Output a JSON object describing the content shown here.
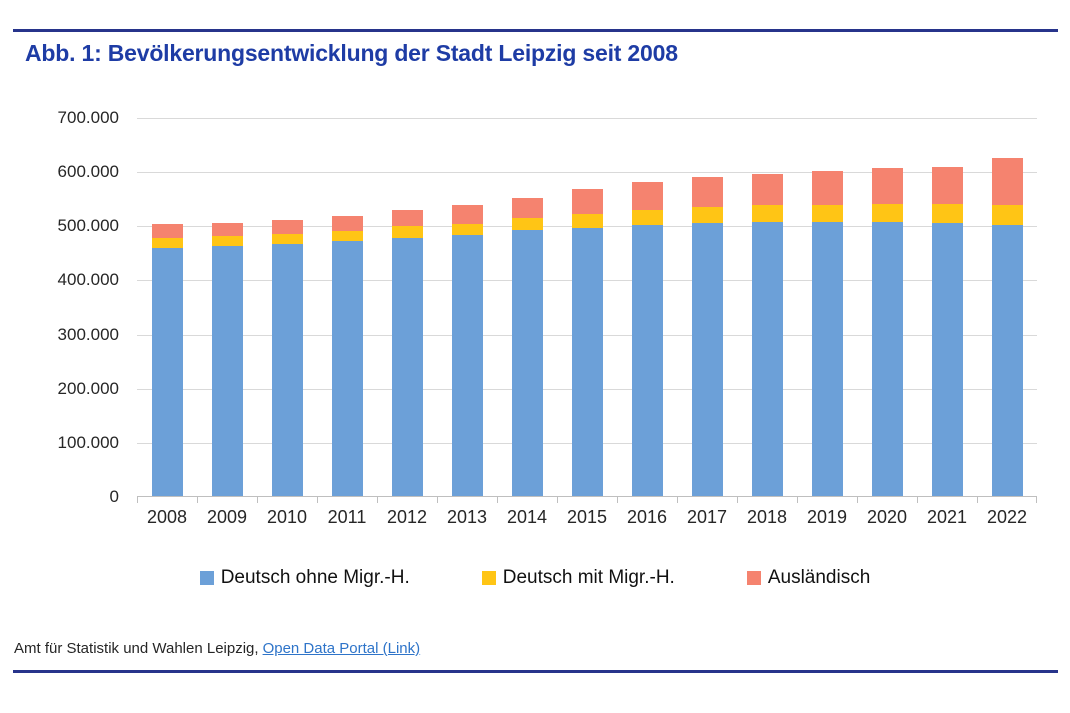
{
  "header": {
    "title": "Abb. 1: Bevölkerungsentwicklung der Stadt Leipzig seit 2008"
  },
  "footer": {
    "source_text": "Amt für Statistik und Wahlen Leipzig,",
    "link_label": "Open Data Portal (Link)"
  },
  "colors": {
    "accent_navy": "#27348B",
    "title_blue": "#1E3CA5",
    "link_blue": "#2E74C9",
    "gridline": "#D9D9D9",
    "axis": "#BFBFBF",
    "text": "#262626"
  },
  "chart_data": {
    "type": "bar",
    "stacked": true,
    "title": "Abb. 1: Bevölkerungsentwicklung der Stadt Leipzig seit 2008",
    "categories": [
      "2008",
      "2009",
      "2010",
      "2011",
      "2012",
      "2013",
      "2014",
      "2015",
      "2016",
      "2017",
      "2018",
      "2019",
      "2020",
      "2021",
      "2022"
    ],
    "series": [
      {
        "name": "Deutsch ohne Migr.-H.",
        "color": "#6CA0D8",
        "values": [
          458000,
          462000,
          466000,
          471000,
          477000,
          483000,
          491000,
          495000,
          500000,
          504000,
          506000,
          507000,
          507000,
          505000,
          501000
        ]
      },
      {
        "name": "Deutsch mit Migr.-H.",
        "color": "#FFC515",
        "values": [
          18000,
          18000,
          18000,
          19000,
          21000,
          20000,
          23000,
          26000,
          28000,
          29000,
          31000,
          30000,
          32000,
          34000,
          36000
        ]
      },
      {
        "name": "Ausländisch",
        "color": "#F5836F",
        "values": [
          26000,
          25000,
          26000,
          28000,
          30000,
          35000,
          37000,
          46000,
          52000,
          57000,
          58000,
          64000,
          66000,
          69000,
          88000
        ]
      }
    ],
    "totals": [
      502000,
      505000,
      510000,
      518000,
      528000,
      538000,
      551000,
      567000,
      580000,
      590000,
      595000,
      601000,
      605000,
      608000,
      625000
    ],
    "xlabel": "",
    "ylabel": "",
    "ylim": [
      0,
      700000
    ],
    "yticks": [
      "700.000",
      "600.000",
      "500.000",
      "400.000",
      "300.000",
      "200.000",
      "100.000",
      "0"
    ],
    "grid": "horizontal",
    "legend_position": "bottom"
  }
}
